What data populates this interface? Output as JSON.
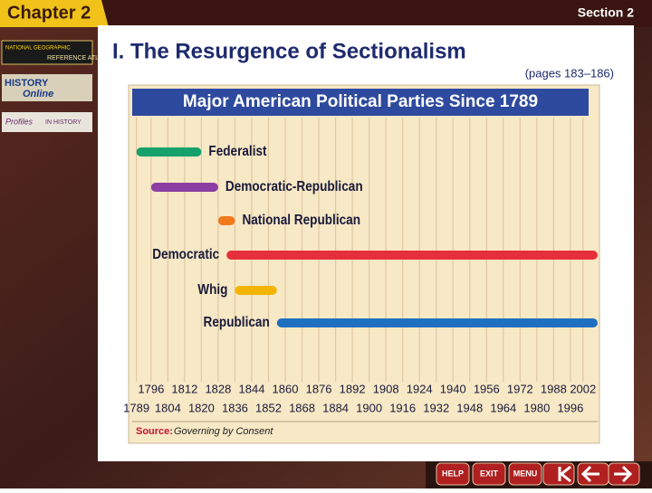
{
  "header": {
    "chapter": "Chapter 2",
    "section": "Section 2"
  },
  "sidebar": {
    "items": [
      "NATIONAL GEOGRAPHIC",
      "REFERENCE ATLAS",
      "HISTORY",
      "Online",
      "Profiles",
      "IN HISTORY"
    ]
  },
  "slide": {
    "title": "I.  The Resurgence of Sectionalism",
    "subtitle": "(pages 183–186)"
  },
  "chart_data": {
    "type": "range_bar",
    "title": "Major American Political Parties Since 1789",
    "source_label": "Source:",
    "source": "Governing by Consent",
    "series": [
      {
        "name": "Federalist",
        "color": "#16a06a",
        "start": 1789,
        "end": 1820
      },
      {
        "name": "Democratic-Republican",
        "color": "#8b3fa2",
        "start": 1796,
        "end": 1828
      },
      {
        "name": "National Republican",
        "color": "#ef7a1c",
        "start": 1828,
        "end": 1836
      },
      {
        "name": "Democratic",
        "color": "#e5303c",
        "start": 1832,
        "end": 2009
      },
      {
        "name": "Whig",
        "color": "#f2b400",
        "start": 1836,
        "end": 1856
      },
      {
        "name": "Republican",
        "color": "#1f6fc0",
        "start": 1856,
        "end": 2009
      }
    ],
    "xlim": [
      1787,
      2009
    ],
    "xticks": [
      1789,
      1796,
      1804,
      1812,
      1820,
      1828,
      1836,
      1844,
      1852,
      1860,
      1868,
      1876,
      1884,
      1892,
      1900,
      1908,
      1916,
      1924,
      1932,
      1940,
      1948,
      1956,
      1964,
      1972,
      1980,
      1988,
      1996,
      2002
    ],
    "grid": true
  },
  "nav": {
    "buttons": [
      "HELP",
      "EXIT",
      "MENU"
    ]
  }
}
